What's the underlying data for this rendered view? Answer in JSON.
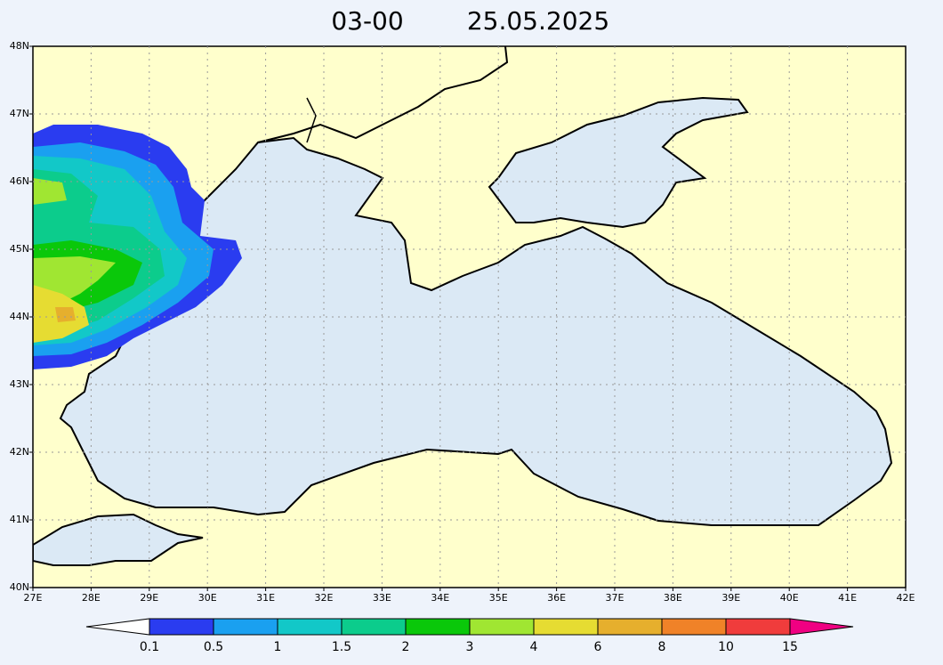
{
  "title": {
    "time": "03-00",
    "date": "25.05.2025"
  },
  "map": {
    "lat_labels": [
      "48N",
      "47N",
      "46N",
      "45N",
      "44N",
      "43N",
      "42N",
      "41N",
      "40N"
    ],
    "lon_labels": [
      "27E",
      "28E",
      "29E",
      "30E",
      "31E",
      "32E",
      "33E",
      "34E",
      "35E",
      "36E",
      "37E",
      "38E",
      "39E",
      "40E",
      "41E",
      "42E"
    ]
  },
  "legend": {
    "levels": [
      0.1,
      0.5,
      1,
      1.5,
      2,
      3,
      4,
      6,
      8,
      10,
      15
    ],
    "colors": [
      "#ffffff",
      "#2a3cf0",
      "#1aa0f0",
      "#12c8c8",
      "#0ccc8c",
      "#0ac80a",
      "#a0e632",
      "#e6dc32",
      "#e6af2d",
      "#f08228",
      "#f03c3c",
      "#f00082"
    ]
  }
}
